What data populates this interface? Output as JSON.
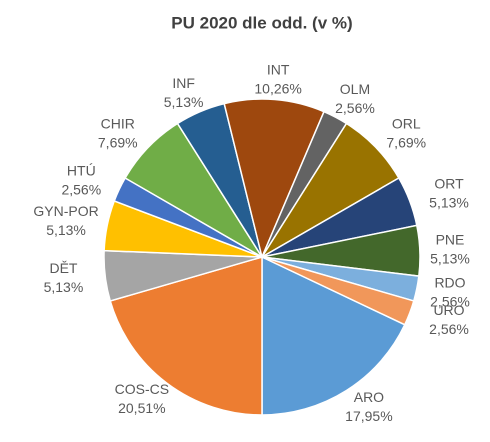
{
  "chart_data": {
    "type": "pie",
    "title": "PU 2020 dle odd. (v %)",
    "categories": [
      "ARO",
      "COS-CS",
      "DĚT",
      "GYN-POR",
      "HTÚ",
      "CHIR",
      "INF",
      "INT",
      "OLM",
      "ORL",
      "ORT",
      "PNE",
      "RDO",
      "URO"
    ],
    "values": [
      17.95,
      20.51,
      5.13,
      5.13,
      2.56,
      7.69,
      5.13,
      10.26,
      2.56,
      7.69,
      5.13,
      5.13,
      2.56,
      2.56
    ],
    "value_labels": [
      "17,95%",
      "20,51%",
      "5,13%",
      "5,13%",
      "2,56%",
      "7,69%",
      "5,13%",
      "10,26%",
      "2,56%",
      "7,69%",
      "5,13%",
      "5,13%",
      "2,56%",
      "2,56%"
    ],
    "colors": [
      "#5b9bd5",
      "#ed7d31",
      "#a5a5a5",
      "#ffc000",
      "#4472c4",
      "#70ad47",
      "#255e91",
      "#9e480e",
      "#636363",
      "#997300",
      "#264478",
      "#43682b",
      "#7cafdd",
      "#f1975a"
    ]
  }
}
